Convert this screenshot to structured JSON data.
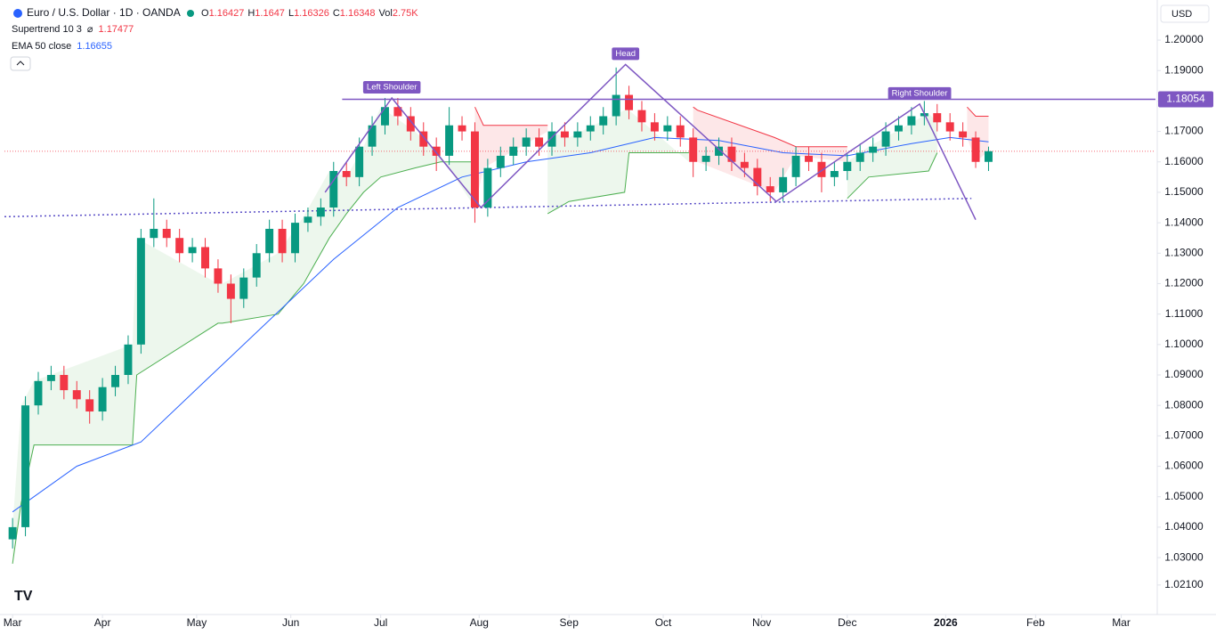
{
  "chart_data": {
    "type": "candlestick",
    "header": {
      "symbol": "Euro / U.S. Dollar · 1D · OANDA",
      "quote": [
        {
          "label": "O",
          "value": 1.16427
        },
        {
          "label": "H",
          "value": 1.1647
        },
        {
          "label": "L",
          "value": 1.16326
        },
        {
          "label": "C",
          "value": 1.16348
        }
      ],
      "volume": {
        "label": "Vol",
        "value": "2.75K"
      },
      "currency": "USD"
    },
    "indicators": [
      {
        "label": "Supertrend 10 3",
        "symbol": "⌀",
        "value": 1.17477,
        "color": "#f23645"
      },
      {
        "label": "EMA 50 close",
        "value": 1.16655,
        "color": "#2962ff"
      }
    ],
    "up_color": "#089981",
    "down_color": "#f23645",
    "x": [
      0,
      3,
      6,
      9,
      12,
      15,
      18,
      21,
      24,
      27,
      30,
      33,
      36,
      39,
      42,
      45,
      48,
      51,
      54,
      57,
      60,
      63,
      66,
      69,
      72,
      75,
      78,
      81,
      84,
      87,
      90,
      93,
      96,
      99,
      102,
      105,
      108,
      111,
      114,
      117,
      120,
      123,
      126,
      129,
      132,
      135,
      138,
      141,
      144,
      147,
      150,
      153,
      156,
      159,
      162,
      165,
      168,
      171,
      174,
      177,
      180,
      183,
      186,
      189,
      192,
      195,
      198,
      201,
      204,
      207,
      210,
      213,
      216,
      219,
      222,
      225,
      228
    ],
    "ohlc": [
      [
        1.036,
        1.043,
        1.033,
        1.04
      ],
      [
        1.04,
        1.083,
        1.037,
        1.08
      ],
      [
        1.08,
        1.091,
        1.077,
        1.088
      ],
      [
        1.088,
        1.093,
        1.085,
        1.09
      ],
      [
        1.09,
        1.093,
        1.082,
        1.085
      ],
      [
        1.085,
        1.088,
        1.079,
        1.082
      ],
      [
        1.082,
        1.085,
        1.074,
        1.078
      ],
      [
        1.078,
        1.089,
        1.075,
        1.086
      ],
      [
        1.086,
        1.093,
        1.083,
        1.09
      ],
      [
        1.09,
        1.103,
        1.087,
        1.1
      ],
      [
        1.1,
        1.138,
        1.097,
        1.135
      ],
      [
        1.135,
        1.148,
        1.132,
        1.138
      ],
      [
        1.138,
        1.141,
        1.132,
        1.135
      ],
      [
        1.135,
        1.138,
        1.127,
        1.13
      ],
      [
        1.13,
        1.135,
        1.127,
        1.132
      ],
      [
        1.132,
        1.135,
        1.122,
        1.125
      ],
      [
        1.125,
        1.128,
        1.117,
        1.12
      ],
      [
        1.12,
        1.123,
        1.107,
        1.115
      ],
      [
        1.115,
        1.125,
        1.112,
        1.122
      ],
      [
        1.122,
        1.133,
        1.119,
        1.13
      ],
      [
        1.13,
        1.141,
        1.127,
        1.138
      ],
      [
        1.138,
        1.141,
        1.127,
        1.13
      ],
      [
        1.13,
        1.143,
        1.127,
        1.14
      ],
      [
        1.14,
        1.145,
        1.137,
        1.142
      ],
      [
        1.142,
        1.148,
        1.139,
        1.145
      ],
      [
        1.145,
        1.16,
        1.142,
        1.157
      ],
      [
        1.157,
        1.16,
        1.152,
        1.155
      ],
      [
        1.155,
        1.168,
        1.152,
        1.165
      ],
      [
        1.165,
        1.175,
        1.162,
        1.172
      ],
      [
        1.172,
        1.181,
        1.169,
        1.178
      ],
      [
        1.178,
        1.181,
        1.172,
        1.175
      ],
      [
        1.175,
        1.178,
        1.167,
        1.17
      ],
      [
        1.17,
        1.173,
        1.162,
        1.165
      ],
      [
        1.165,
        1.168,
        1.157,
        1.162
      ],
      [
        1.162,
        1.178,
        1.159,
        1.172
      ],
      [
        1.172,
        1.175,
        1.167,
        1.17
      ],
      [
        1.17,
        1.173,
        1.14,
        1.145
      ],
      [
        1.145,
        1.161,
        1.142,
        1.158
      ],
      [
        1.158,
        1.165,
        1.155,
        1.162
      ],
      [
        1.162,
        1.168,
        1.159,
        1.165
      ],
      [
        1.165,
        1.171,
        1.162,
        1.168
      ],
      [
        1.168,
        1.171,
        1.162,
        1.165
      ],
      [
        1.165,
        1.173,
        1.162,
        1.17
      ],
      [
        1.17,
        1.173,
        1.165,
        1.168
      ],
      [
        1.168,
        1.173,
        1.165,
        1.17
      ],
      [
        1.17,
        1.175,
        1.167,
        1.172
      ],
      [
        1.172,
        1.178,
        1.169,
        1.175
      ],
      [
        1.175,
        1.191,
        1.172,
        1.182
      ],
      [
        1.182,
        1.185,
        1.174,
        1.177
      ],
      [
        1.177,
        1.18,
        1.17,
        1.173
      ],
      [
        1.173,
        1.176,
        1.167,
        1.17
      ],
      [
        1.17,
        1.175,
        1.167,
        1.172
      ],
      [
        1.172,
        1.175,
        1.165,
        1.168
      ],
      [
        1.168,
        1.171,
        1.155,
        1.16
      ],
      [
        1.16,
        1.165,
        1.157,
        1.162
      ],
      [
        1.162,
        1.168,
        1.159,
        1.165
      ],
      [
        1.165,
        1.168,
        1.157,
        1.16
      ],
      [
        1.16,
        1.163,
        1.155,
        1.158
      ],
      [
        1.158,
        1.161,
        1.149,
        1.152
      ],
      [
        1.152,
        1.155,
        1.147,
        1.15
      ],
      [
        1.15,
        1.158,
        1.147,
        1.155
      ],
      [
        1.155,
        1.165,
        1.152,
        1.162
      ],
      [
        1.162,
        1.165,
        1.157,
        1.16
      ],
      [
        1.16,
        1.163,
        1.15,
        1.155
      ],
      [
        1.155,
        1.16,
        1.152,
        1.157
      ],
      [
        1.157,
        1.163,
        1.154,
        1.16
      ],
      [
        1.16,
        1.166,
        1.157,
        1.163
      ],
      [
        1.163,
        1.168,
        1.16,
        1.165
      ],
      [
        1.165,
        1.173,
        1.162,
        1.17
      ],
      [
        1.17,
        1.175,
        1.167,
        1.172
      ],
      [
        1.172,
        1.178,
        1.169,
        1.175
      ],
      [
        1.175,
        1.18,
        1.172,
        1.176
      ],
      [
        1.176,
        1.179,
        1.17,
        1.173
      ],
      [
        1.173,
        1.176,
        1.167,
        1.17
      ],
      [
        1.17,
        1.173,
        1.165,
        1.168
      ],
      [
        1.168,
        1.17,
        1.158,
        1.16
      ],
      [
        1.16,
        1.165,
        1.157,
        1.1635
      ]
    ],
    "ema": {
      "x": [
        0,
        15,
        30,
        45,
        60,
        75,
        90,
        105,
        120,
        135,
        150,
        165,
        180,
        195,
        210,
        219,
        228
      ],
      "values": [
        1.045,
        1.06,
        1.068,
        1.088,
        1.108,
        1.128,
        1.145,
        1.155,
        1.16,
        1.163,
        1.168,
        1.167,
        1.163,
        1.162,
        1.166,
        1.168,
        1.1666
      ]
    },
    "supertrend_up": {
      "color": "#4caf50",
      "x": [
        0,
        2,
        5,
        28,
        29,
        48,
        49,
        62,
        68,
        74,
        78,
        82,
        86,
        94,
        100,
        108,
        109,
        125,
        130,
        143,
        144,
        158,
        159,
        195,
        200,
        214,
        216
      ],
      "values": [
        1.028,
        1.048,
        1.067,
        1.067,
        1.09,
        1.107,
        1.107,
        1.11,
        1.12,
        1.135,
        1.143,
        1.15,
        1.155,
        1.158,
        1.16,
        1.16,
        null,
        1.143,
        1.147,
        1.15,
        1.163,
        1.163,
        null,
        1.148,
        1.155,
        1.157,
        1.163
      ]
    },
    "supertrend_down": {
      "color": "#f23645",
      "x": [
        108,
        110,
        125,
        126,
        159,
        160,
        178,
        183,
        195,
        196,
        223,
        225,
        228
      ],
      "values": [
        1.178,
        1.172,
        1.172,
        null,
        1.178,
        1.177,
        1.168,
        1.165,
        1.165,
        null,
        1.178,
        1.175,
        1.175
      ]
    },
    "neckline": {
      "value": 1.18054,
      "x": [
        77,
        267
      ],
      "color": "#7e57c2"
    },
    "pattern": {
      "x": [
        73,
        88.6,
        109.4,
        143.2,
        178.4,
        211.9,
        225
      ],
      "values": [
        1.15,
        1.181,
        1.145,
        1.192,
        1.147,
        1.179,
        1.141
      ],
      "labels": [
        "Left Shoulder",
        "Head",
        "Right Shoulder"
      ]
    },
    "trendline": {
      "x": [
        -1.9,
        224
      ],
      "values": [
        1.142,
        1.148
      ]
    },
    "xlim": [
      -1.9,
      267
    ],
    "ylim": [
      1.0113,
      1.2123
    ],
    "xticks": [
      {
        "value": 0,
        "label": "Mar"
      },
      {
        "value": 21,
        "label": "Apr"
      },
      {
        "value": 43,
        "label": "May"
      },
      {
        "value": 65,
        "label": "Jun"
      },
      {
        "value": 86,
        "label": "Jul"
      },
      {
        "value": 109,
        "label": "Aug"
      },
      {
        "value": 130,
        "label": "Sep"
      },
      {
        "value": 152,
        "label": "Oct"
      },
      {
        "value": 175,
        "label": "Nov"
      },
      {
        "value": 195,
        "label": "Dec"
      },
      {
        "value": 218,
        "label": "2026"
      },
      {
        "value": 239,
        "label": "Feb"
      },
      {
        "value": 259,
        "label": "Mar"
      }
    ],
    "yticks": [
      {
        "value": 1.2,
        "label": "1.20000"
      },
      {
        "value": 1.19,
        "label": "1.19000"
      },
      {
        "value": 1.18,
        "label": "1.18000"
      },
      {
        "value": 1.17,
        "label": "1.17000"
      },
      {
        "value": 1.16,
        "label": "1.16000"
      },
      {
        "value": 1.15,
        "label": "1.15000"
      },
      {
        "value": 1.14,
        "label": "1.14000"
      },
      {
        "value": 1.13,
        "label": "1.13000"
      },
      {
        "value": 1.12,
        "label": "1.12000"
      },
      {
        "value": 1.11,
        "label": "1.11000"
      },
      {
        "value": 1.1,
        "label": "1.10000"
      },
      {
        "value": 1.09,
        "label": "1.09000"
      },
      {
        "value": 1.08,
        "label": "1.08000"
      },
      {
        "value": 1.07,
        "label": "1.07000"
      },
      {
        "value": 1.06,
        "label": "1.06000"
      },
      {
        "value": 1.05,
        "label": "1.05000"
      },
      {
        "value": 1.04,
        "label": "1.04000"
      },
      {
        "value": 1.03,
        "label": "1.03000"
      },
      {
        "value": 1.021,
        "label": "1.02100"
      }
    ]
  }
}
